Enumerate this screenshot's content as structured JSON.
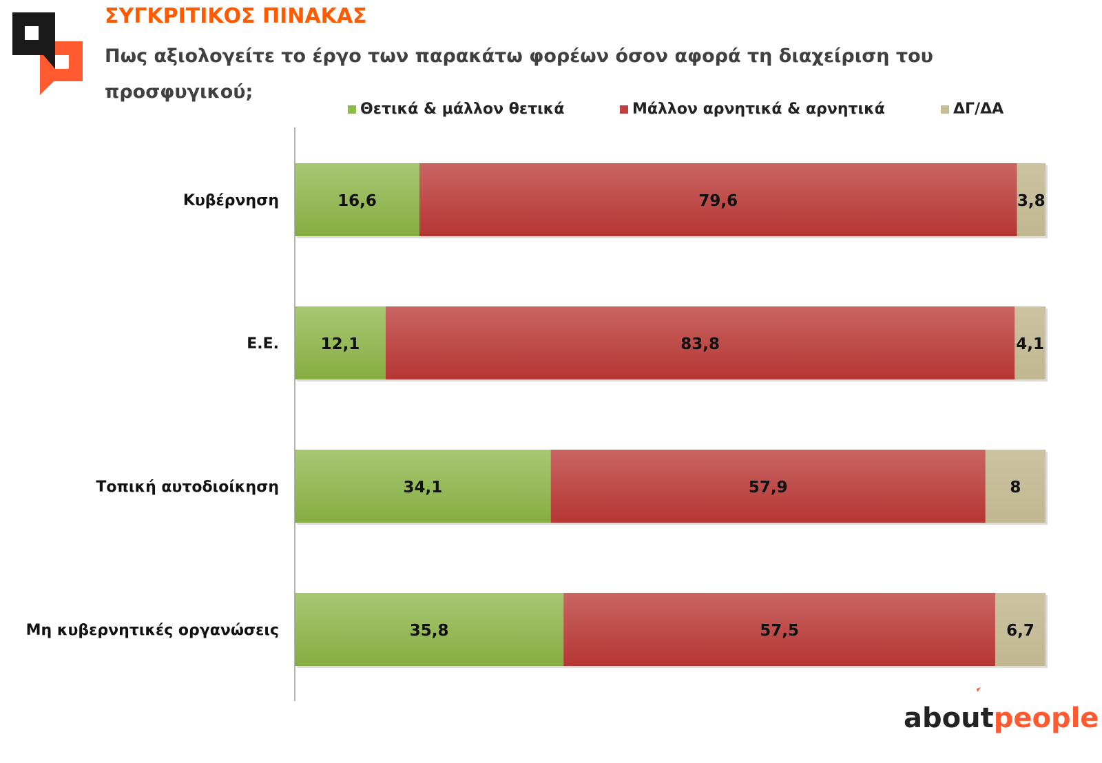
{
  "header": {
    "title": "ΣΥΓΚΡΙΤΙΚΟΣ ΠΙΝΑΚΑΣ",
    "subtitle": "Πως αξιολογείτε το έργο των παρακάτω φορέων όσον αφορά τη διαχείριση του προσφυγικού;"
  },
  "brand": {
    "part1": "about",
    "part2": "people"
  },
  "chart_data": {
    "type": "bar",
    "orientation": "horizontal",
    "stacked": true,
    "categories": [
      "Κυβέρνηση",
      "Ε.Ε.",
      "Τοπική αυτοδιοίκηση",
      "Μη κυβερνητικές οργανώσεις"
    ],
    "series": [
      {
        "name": "Θετικά & μάλλον θετικά",
        "color": "#8fb84a",
        "values": [
          16.6,
          12.1,
          34.1,
          35.8
        ],
        "labels": [
          "16,6",
          "12,1",
          "34,1",
          "35,8"
        ]
      },
      {
        "name": "Μάλλον αρνητικά & αρνητικά",
        "color": "#c0403e",
        "values": [
          79.6,
          83.8,
          57.9,
          57.5
        ],
        "labels": [
          "79,6",
          "83,8",
          "57,9",
          "57,5"
        ]
      },
      {
        "name": "ΔΓ/ΔΑ",
        "color": "#c6bc98",
        "values": [
          3.8,
          4.1,
          8,
          6.7
        ],
        "labels": [
          "3,8",
          "4,1",
          "8",
          "6,7"
        ]
      }
    ],
    "xlim": [
      0,
      100
    ],
    "legend_position": "top",
    "grid": false
  }
}
